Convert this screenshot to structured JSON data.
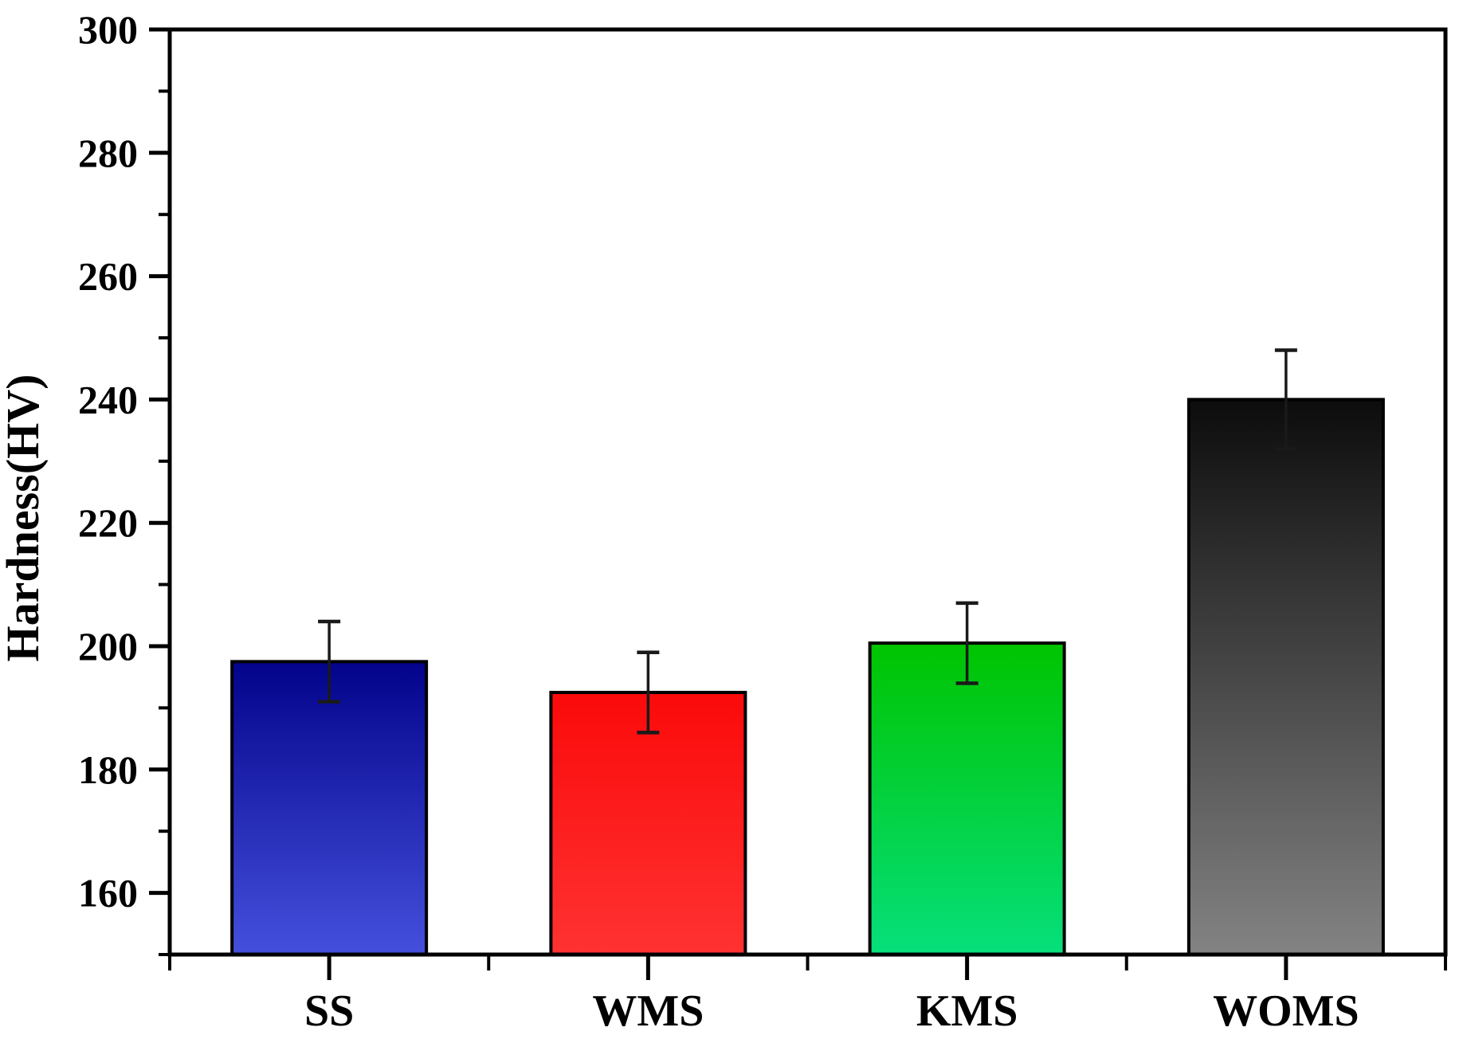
{
  "chart_data": {
    "type": "bar",
    "title": "",
    "categories": [
      "SS",
      "WMS",
      "KMS",
      "WOMS"
    ],
    "values": [
      197.5,
      192.5,
      200.5,
      240
    ],
    "errors": [
      6.5,
      6.5,
      6.5,
      8
    ],
    "series": [
      {
        "name": "Hardness",
        "values": [
          197.5,
          192.5,
          200.5,
          240
        ],
        "errors": [
          6.5,
          6.5,
          6.5,
          8
        ]
      }
    ],
    "bar_colors": [
      {
        "name": "blue-gradient",
        "top": "#03038B",
        "bottom": "#4450DC"
      },
      {
        "name": "red-gradient",
        "top": "#FB0A0A",
        "bottom": "#FF3232"
      },
      {
        "name": "green-gradient",
        "top": "#00C400",
        "bottom": "#06DF7C"
      },
      {
        "name": "black-gradient",
        "top": "#0C0C0C",
        "bottom": "#838383"
      }
    ],
    "xlabel": "",
    "ylabel": "Hardness(HV)",
    "ylim": [
      150,
      300
    ],
    "ytick_major": [
      160,
      180,
      200,
      220,
      240,
      260,
      280,
      300
    ],
    "ytick_minor": [
      150,
      170,
      190,
      210,
      230,
      250,
      270,
      290
    ],
    "grid": false,
    "legend": false,
    "frame": true,
    "axis_color": "#000000",
    "error_bar_color": "#1a1a1a",
    "background": "#FFFFFF"
  }
}
